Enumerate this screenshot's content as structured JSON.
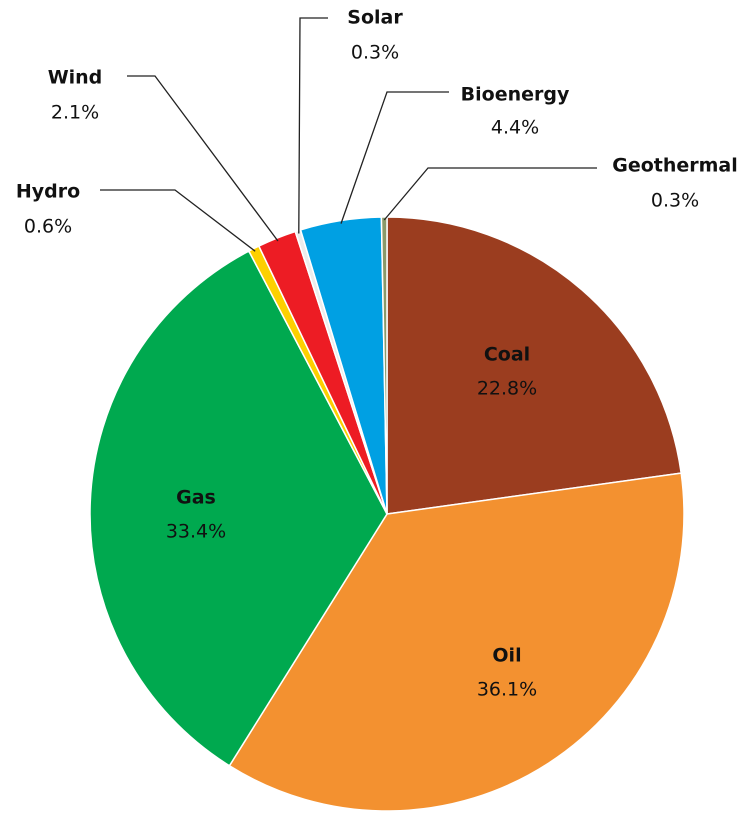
{
  "chart_data": {
    "type": "pie",
    "categories": [
      "Coal",
      "Oil",
      "Gas",
      "Hydro",
      "Wind",
      "Solar",
      "Bioenergy",
      "Geothermal"
    ],
    "values": [
      22.8,
      36.1,
      33.4,
      0.6,
      2.1,
      0.3,
      4.4,
      0.3
    ],
    "value_labels": [
      "22.8%",
      "36.1%",
      "33.4%",
      "0.6%",
      "2.1%",
      "0.3%",
      "4.4%",
      "0.3%"
    ],
    "colors": [
      "#9b3d1f",
      "#f39130",
      "#00a94f",
      "#fdd000",
      "#ed1c24",
      "#ececec",
      "#00a0e3",
      "#8a9a6a"
    ]
  }
}
